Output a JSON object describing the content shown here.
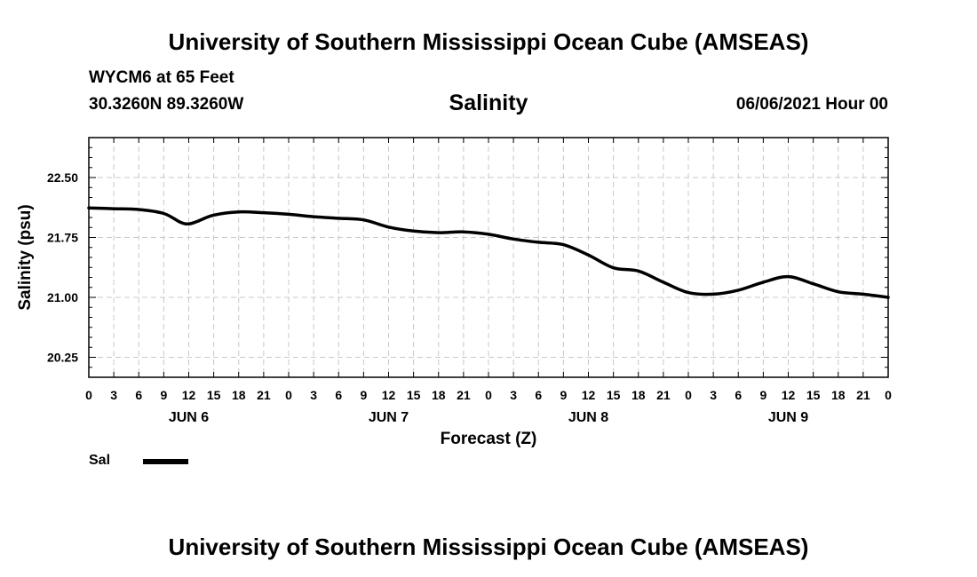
{
  "header": {
    "title": "University of Southern Mississippi Ocean Cube (AMSEAS)",
    "station": "WYCM6 at 65 Feet",
    "coords": "30.3260N  89.3260W",
    "datetime": "06/06/2021 Hour 00"
  },
  "footer": {
    "title": "University of Southern Mississippi Ocean Cube (AMSEAS)"
  },
  "legend": {
    "label": "Sal"
  },
  "chart_data": {
    "type": "line",
    "title": "Salinity",
    "xlabel": "Forecast (Z)",
    "ylabel": "Salinity (psu)",
    "xlim": [
      0,
      96
    ],
    "ylim": [
      20.0,
      23.0
    ],
    "grid": true,
    "legend_position": "bottom-left",
    "x_ticks": [
      0,
      3,
      6,
      9,
      12,
      15,
      18,
      21,
      24,
      27,
      30,
      33,
      36,
      39,
      42,
      45,
      48,
      51,
      54,
      57,
      60,
      63,
      66,
      69,
      72,
      75,
      78,
      81,
      84,
      87,
      90,
      93,
      96
    ],
    "x_tick_labels": [
      "0",
      "3",
      "6",
      "9",
      "12",
      "15",
      "18",
      "21",
      "0",
      "3",
      "6",
      "9",
      "12",
      "15",
      "18",
      "21",
      "0",
      "3",
      "6",
      "9",
      "12",
      "15",
      "18",
      "21",
      "0",
      "3",
      "6",
      "9",
      "12",
      "15",
      "18",
      "21",
      "0"
    ],
    "date_labels": [
      {
        "label": "JUN 6",
        "x": 12
      },
      {
        "label": "JUN 7",
        "x": 36
      },
      {
        "label": "JUN 8",
        "x": 60
      },
      {
        "label": "JUN 9",
        "x": 84
      }
    ],
    "y_ticks": [
      20.25,
      21.0,
      21.75,
      22.5
    ],
    "y_tick_labels": [
      "20.25",
      "21.00",
      "21.75",
      "22.50"
    ],
    "series": [
      {
        "name": "Sal",
        "x": [
          0,
          3,
          6,
          9,
          11,
          12,
          13,
          15,
          18,
          21,
          24,
          27,
          30,
          33,
          36,
          39,
          42,
          45,
          48,
          51,
          54,
          57,
          60,
          63,
          66,
          69,
          72,
          75,
          78,
          81,
          84,
          87,
          90,
          93,
          96
        ],
        "values": [
          22.12,
          22.11,
          22.1,
          22.05,
          21.94,
          21.92,
          21.95,
          22.03,
          22.07,
          22.06,
          22.04,
          22.01,
          21.99,
          21.97,
          21.88,
          21.83,
          21.81,
          21.82,
          21.79,
          21.73,
          21.69,
          21.66,
          21.53,
          21.37,
          21.33,
          21.19,
          21.06,
          21.04,
          21.09,
          21.19,
          21.26,
          21.17,
          21.07,
          21.04,
          21.0
        ]
      }
    ]
  }
}
